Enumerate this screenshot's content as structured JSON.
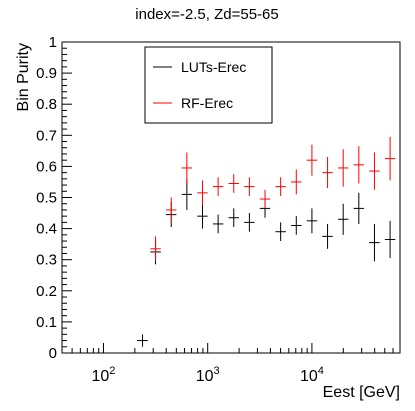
{
  "chart_data": {
    "type": "scatter",
    "title": "index=-2.5,  Zd=55-65",
    "xlabel": "Eest [GeV]",
    "ylabel": "Bin Purity",
    "x_scale": "log",
    "xlim": [
      40,
      70000
    ],
    "ylim": [
      0,
      1
    ],
    "x_major_ticks": [
      {
        "value": 100,
        "base": "10",
        "exp": "2"
      },
      {
        "value": 1000,
        "base": "10",
        "exp": "3"
      },
      {
        "value": 10000,
        "base": "10",
        "exp": "4"
      }
    ],
    "y_ticks": [
      "0",
      "0.1",
      "0.2",
      "0.3",
      "0.4",
      "0.5",
      "0.6",
      "0.7",
      "0.8",
      "0.9",
      "1"
    ],
    "legend_position": "top-center",
    "grid": false,
    "series": [
      {
        "name": "LUTs-Erec",
        "color": "#000000",
        "points": [
          {
            "x": 237,
            "xlo": 210,
            "xhi": 266,
            "y": 0.04,
            "err": 0.02
          },
          {
            "x": 316,
            "xlo": 282,
            "xhi": 355,
            "y": 0.325,
            "err": 0.04
          },
          {
            "x": 447,
            "xlo": 398,
            "xhi": 501,
            "y": 0.445,
            "err": 0.04
          },
          {
            "x": 631,
            "xlo": 562,
            "xhi": 708,
            "y": 0.51,
            "err": 0.05
          },
          {
            "x": 891,
            "xlo": 794,
            "xhi": 1000,
            "y": 0.44,
            "err": 0.04
          },
          {
            "x": 1259,
            "xlo": 1122,
            "xhi": 1413,
            "y": 0.415,
            "err": 0.03
          },
          {
            "x": 1778,
            "xlo": 1585,
            "xhi": 1995,
            "y": 0.435,
            "err": 0.03
          },
          {
            "x": 2512,
            "xlo": 2239,
            "xhi": 2818,
            "y": 0.42,
            "err": 0.03
          },
          {
            "x": 3548,
            "xlo": 3162,
            "xhi": 3981,
            "y": 0.465,
            "err": 0.03
          },
          {
            "x": 5012,
            "xlo": 4467,
            "xhi": 5623,
            "y": 0.39,
            "err": 0.03
          },
          {
            "x": 7079,
            "xlo": 6310,
            "xhi": 7943,
            "y": 0.41,
            "err": 0.03
          },
          {
            "x": 10000,
            "xlo": 8913,
            "xhi": 11220,
            "y": 0.425,
            "err": 0.04
          },
          {
            "x": 14125,
            "xlo": 12589,
            "xhi": 15849,
            "y": 0.375,
            "err": 0.04
          },
          {
            "x": 19953,
            "xlo": 17783,
            "xhi": 22387,
            "y": 0.43,
            "err": 0.05
          },
          {
            "x": 28184,
            "xlo": 25119,
            "xhi": 31623,
            "y": 0.465,
            "err": 0.05
          },
          {
            "x": 39811,
            "xlo": 35481,
            "xhi": 44668,
            "y": 0.355,
            "err": 0.06
          },
          {
            "x": 56234,
            "xlo": 50119,
            "xhi": 63096,
            "y": 0.365,
            "err": 0.06
          }
        ]
      },
      {
        "name": "RF-Erec",
        "color": "#ff0000",
        "points": [
          {
            "x": 316,
            "xlo": 282,
            "xhi": 355,
            "y": 0.335,
            "err": 0.04
          },
          {
            "x": 447,
            "xlo": 398,
            "xhi": 501,
            "y": 0.46,
            "err": 0.04
          },
          {
            "x": 631,
            "xlo": 562,
            "xhi": 708,
            "y": 0.595,
            "err": 0.05
          },
          {
            "x": 891,
            "xlo": 794,
            "xhi": 1000,
            "y": 0.515,
            "err": 0.04
          },
          {
            "x": 1259,
            "xlo": 1122,
            "xhi": 1413,
            "y": 0.535,
            "err": 0.03
          },
          {
            "x": 1778,
            "xlo": 1585,
            "xhi": 1995,
            "y": 0.545,
            "err": 0.03
          },
          {
            "x": 2512,
            "xlo": 2239,
            "xhi": 2818,
            "y": 0.535,
            "err": 0.03
          },
          {
            "x": 3548,
            "xlo": 3162,
            "xhi": 3981,
            "y": 0.495,
            "err": 0.03
          },
          {
            "x": 5012,
            "xlo": 4467,
            "xhi": 5623,
            "y": 0.535,
            "err": 0.03
          },
          {
            "x": 7079,
            "xlo": 6310,
            "xhi": 7943,
            "y": 0.55,
            "err": 0.04
          },
          {
            "x": 10000,
            "xlo": 8913,
            "xhi": 11220,
            "y": 0.62,
            "err": 0.05
          },
          {
            "x": 14125,
            "xlo": 12589,
            "xhi": 15849,
            "y": 0.58,
            "err": 0.05
          },
          {
            "x": 19953,
            "xlo": 17783,
            "xhi": 22387,
            "y": 0.595,
            "err": 0.06
          },
          {
            "x": 28184,
            "xlo": 25119,
            "xhi": 31623,
            "y": 0.605,
            "err": 0.06
          },
          {
            "x": 39811,
            "xlo": 35481,
            "xhi": 44668,
            "y": 0.585,
            "err": 0.06
          },
          {
            "x": 56234,
            "xlo": 50119,
            "xhi": 63096,
            "y": 0.625,
            "err": 0.07
          }
        ]
      }
    ]
  }
}
